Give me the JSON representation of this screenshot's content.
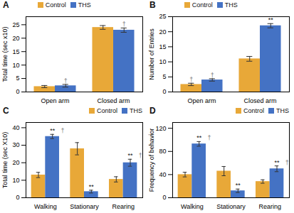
{
  "chart_data": [
    {
      "type": "bar",
      "title": "A",
      "ylabel": "Total time (sec x10)",
      "categories": [
        "Open arm",
        "Closed arm"
      ],
      "series": [
        {
          "name": "Control",
          "color": "#E8A838",
          "values": [
            2.0,
            24.0
          ],
          "errors": [
            0.4,
            0.7
          ]
        },
        {
          "name": "THS",
          "color": "#4472C4",
          "values": [
            2.3,
            23.0
          ],
          "errors": [
            0.5,
            0.8
          ]
        }
      ],
      "ylim": [
        0,
        28
      ],
      "yticks": [
        0,
        5,
        10,
        15,
        20,
        25
      ],
      "legend": "upper left",
      "annotations": [
        {
          "text": "†",
          "category": "Open arm",
          "series": "THS",
          "color": "#777777"
        },
        {
          "text": "†",
          "category": "Closed arm",
          "series": "THS",
          "color": "#777777"
        }
      ]
    },
    {
      "type": "bar",
      "title": "B",
      "ylabel": "Number of Entries",
      "categories": [
        "Open arm",
        "Closed arm"
      ],
      "series": [
        {
          "name": "Control",
          "color": "#E8A838",
          "values": [
            2.5,
            11.0
          ],
          "errors": [
            0.4,
            0.8
          ]
        },
        {
          "name": "THS",
          "color": "#4472C4",
          "values": [
            4.0,
            22.0
          ],
          "errors": [
            0.4,
            0.7
          ]
        }
      ],
      "ylim": [
        0,
        25
      ],
      "yticks": [
        0,
        5,
        10,
        15,
        20,
        25
      ],
      "legend": "upper left",
      "annotations": [
        {
          "text": "**",
          "category": "Closed arm",
          "series": "THS",
          "color": "#111111"
        },
        {
          "text": "†",
          "category": "Open arm",
          "series": "Control",
          "color": "#777777"
        },
        {
          "text": "†",
          "category": "Open arm",
          "series": "THS",
          "color": "#777777"
        }
      ]
    },
    {
      "type": "bar",
      "title": "C",
      "ylabel": "Total time (sec X10)",
      "categories": [
        "Walking",
        "Stationary",
        "Rearing"
      ],
      "series": [
        {
          "name": "Control",
          "color": "#E8A838",
          "values": [
            13.0,
            28.0,
            10.5
          ],
          "errors": [
            1.5,
            3.5,
            1.5
          ]
        },
        {
          "name": "THS",
          "color": "#4472C4",
          "values": [
            35.0,
            3.5,
            20.0
          ],
          "errors": [
            1.2,
            0.8,
            2.0
          ]
        }
      ],
      "ylim": [
        0,
        43
      ],
      "yticks": [
        0,
        10,
        20,
        30,
        40
      ],
      "legend": "upper right",
      "annotations": [
        {
          "text": "**",
          "category": "Walking",
          "series": "THS",
          "color": "#111111"
        },
        {
          "text": "†",
          "category": "Walking",
          "series": "THS",
          "color": "#777777"
        },
        {
          "text": "**",
          "category": "Stationary",
          "series": "THS",
          "color": "#111111"
        },
        {
          "text": "**",
          "category": "Rearing",
          "series": "THS",
          "color": "#111111"
        },
        {
          "text": "†",
          "category": "Rearing",
          "series": "THS",
          "color": "#777777"
        }
      ]
    },
    {
      "type": "bar",
      "title": "D",
      "ylabel": "Frequency of behavior",
      "categories": [
        "Walking",
        "Stationary",
        "Rearing"
      ],
      "series": [
        {
          "name": "Control",
          "color": "#E8A838",
          "values": [
            40.0,
            46.0,
            28.0
          ],
          "errors": [
            4.0,
            8.0,
            3.0
          ]
        },
        {
          "name": "THS",
          "color": "#4472C4",
          "values": [
            93.0,
            12.0,
            50.0
          ],
          "errors": [
            4.0,
            3.0,
            5.0
          ]
        }
      ],
      "ylim": [
        0,
        130
      ],
      "yticks": [
        0,
        40,
        80,
        120
      ],
      "legend": "upper right",
      "annotations": [
        {
          "text": "**",
          "category": "Walking",
          "series": "THS",
          "color": "#111111"
        },
        {
          "text": "†",
          "category": "Walking",
          "series": "THS",
          "color": "#777777"
        },
        {
          "text": "**",
          "category": "Stationary",
          "series": "THS",
          "color": "#111111"
        },
        {
          "text": "**",
          "category": "Rearing",
          "series": "THS",
          "color": "#111111"
        },
        {
          "text": "†",
          "category": "Rearing",
          "series": "THS",
          "color": "#777777"
        }
      ]
    }
  ]
}
